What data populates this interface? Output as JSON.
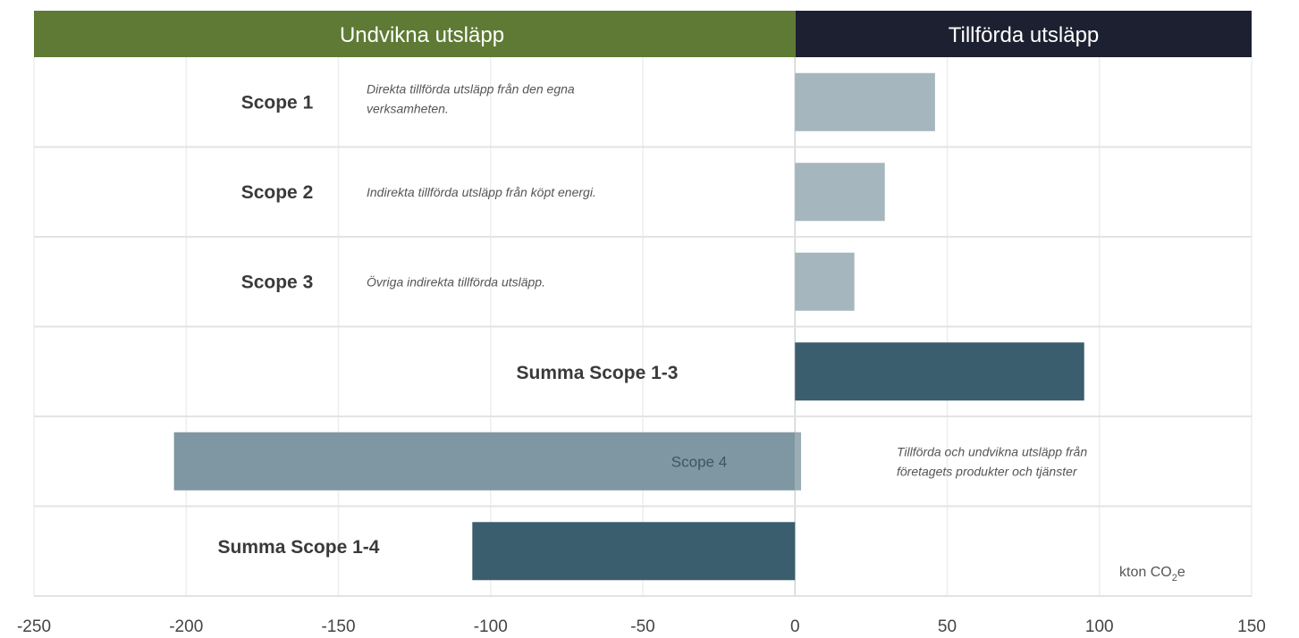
{
  "chart_data": {
    "type": "bar",
    "orientation": "horizontal",
    "headers": {
      "negative": "Undvikna utsläpp",
      "positive": "Tillförda utsläpp"
    },
    "xlim": [
      -250,
      150
    ],
    "xticks": [
      "-250",
      "-200",
      "-150",
      "-100",
      "-50",
      "0",
      "50",
      "100",
      "150"
    ],
    "unit_label": "kton CO",
    "unit_sub": "2",
    "unit_suffix": "e",
    "grid": "vertical",
    "rows": [
      {
        "label": "Scope 1",
        "value": 46,
        "color": "#a5b6be",
        "description": [
          "Direkta tillförda utsläpp från den egna",
          "verksamheten."
        ]
      },
      {
        "label": "Scope 2",
        "value": 29.5,
        "color": "#a5b6be",
        "description": [
          "Indirekta tillförda utsläpp från köpt energi."
        ]
      },
      {
        "label": "Scope 3",
        "value": 19.5,
        "color": "#a5b6be",
        "description": [
          "Övriga indirekta tillförda utsläpp."
        ]
      },
      {
        "label": "Summa Scope 1-3",
        "value": 95,
        "color": "#3b5e6e",
        "description": []
      },
      {
        "label": "Scope 4",
        "value": -204,
        "positive_value": 2,
        "color": "#7f97a2",
        "description": [
          "Tillförda och undvikna utsläpp från",
          "företagets produkter och tjänster"
        ]
      },
      {
        "label": "Summa Scope 1-4",
        "value": -106,
        "color": "#3b5e6e",
        "description": []
      }
    ]
  }
}
